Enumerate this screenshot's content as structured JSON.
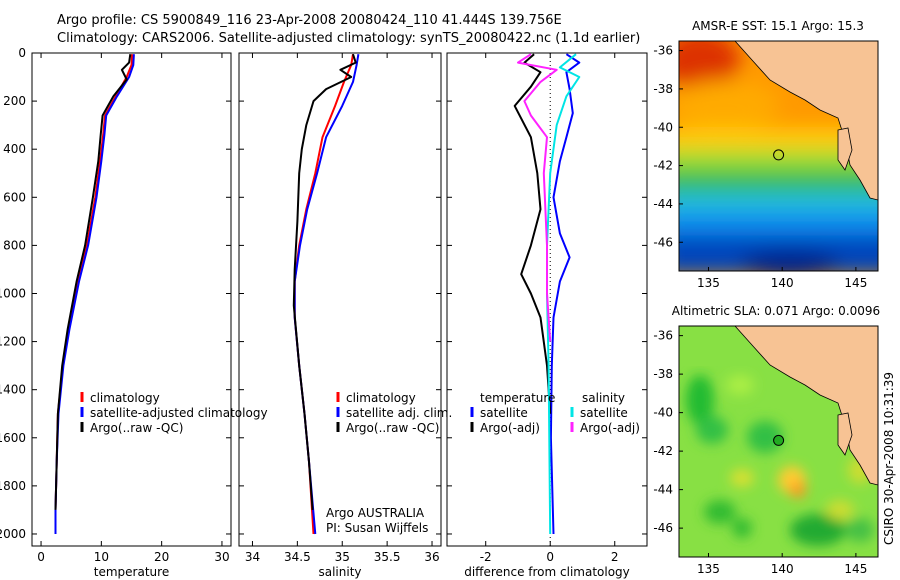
{
  "header": {
    "line1": "Argo profile: CS 5900849_116 23-Apr-2008 20080424_110 41.444S 139.756E",
    "line2": "Climatology: CARS2006. Satellite-adjusted climatology: synTS_20080422.nc (1.1d earlier)"
  },
  "side_label": "CSIRO 30-Apr-2008 10:31:39",
  "colors": {
    "red": "#ff0000",
    "blue": "#0000ff",
    "black": "#000000",
    "cyan": "#00e5e5",
    "magenta": "#ff22ff",
    "land": "#f7c394"
  },
  "chart_data": [
    {
      "id": "temperature",
      "type": "line",
      "xlabel": "temperature",
      "ylabel": "",
      "xlim": [
        -1.5,
        31.5
      ],
      "ylim": [
        2050,
        0
      ],
      "xticks": [
        "0",
        "10",
        "20",
        "30"
      ],
      "yticks": [
        "0",
        "200",
        "400",
        "600",
        "800",
        "1000",
        "1200",
        "1400",
        "1600",
        "1800",
        "2000"
      ],
      "legend": [
        {
          "label": "climatology",
          "color": "red"
        },
        {
          "label": "satellite-adjusted climatology",
          "color": "blue"
        },
        {
          "label": "Argo(..raw -QC)",
          "color": "black"
        }
      ],
      "series": [
        {
          "name": "climatology",
          "color": "red",
          "points": [
            [
              15.1,
              5
            ],
            [
              15.0,
              50
            ],
            [
              14.2,
              100
            ],
            [
              12.4,
              180
            ],
            [
              10.6,
              260
            ],
            [
              10.3,
              340
            ],
            [
              9.8,
              450
            ],
            [
              9.0,
              600
            ],
            [
              7.6,
              800
            ],
            [
              6.2,
              950
            ],
            [
              4.6,
              1150
            ],
            [
              3.6,
              1300
            ],
            [
              2.8,
              1500
            ],
            [
              2.6,
              1700
            ],
            [
              2.4,
              1900
            ],
            [
              2.4,
              2000
            ]
          ]
        },
        {
          "name": "satellite-adjusted climatology",
          "color": "blue",
          "points": [
            [
              15.4,
              5
            ],
            [
              15.3,
              50
            ],
            [
              14.6,
              100
            ],
            [
              12.6,
              180
            ],
            [
              10.8,
              260
            ],
            [
              10.5,
              340
            ],
            [
              10.0,
              450
            ],
            [
              9.2,
              600
            ],
            [
              7.8,
              800
            ],
            [
              6.3,
              950
            ],
            [
              4.7,
              1150
            ],
            [
              3.7,
              1300
            ],
            [
              2.9,
              1500
            ],
            [
              2.6,
              1700
            ],
            [
              2.4,
              1900
            ],
            [
              2.4,
              2000
            ]
          ]
        },
        {
          "name": "Argo(..raw -QC)",
          "color": "black",
          "points": [
            [
              14.8,
              5
            ],
            [
              14.6,
              40
            ],
            [
              13.4,
              70
            ],
            [
              14.2,
              110
            ],
            [
              12.0,
              180
            ],
            [
              10.2,
              260
            ],
            [
              9.9,
              340
            ],
            [
              9.5,
              450
            ],
            [
              8.6,
              600
            ],
            [
              7.3,
              800
            ],
            [
              5.9,
              950
            ],
            [
              4.4,
              1150
            ],
            [
              3.5,
              1300
            ],
            [
              2.8,
              1500
            ],
            [
              2.6,
              1700
            ],
            [
              2.4,
              1900
            ]
          ]
        }
      ]
    },
    {
      "id": "salinity",
      "type": "line",
      "xlabel": "salinity",
      "ylabel": "",
      "xlim": [
        33.85,
        36.1
      ],
      "ylim": [
        2050,
        0
      ],
      "xticks": [
        "34",
        "34.5",
        "35",
        "35.5",
        "36"
      ],
      "legend": [
        {
          "label": "climatology",
          "color": "red"
        },
        {
          "label": "satellite adj. clim.",
          "color": "blue"
        },
        {
          "label": "Argo(..raw -QC)",
          "color": "black"
        }
      ],
      "annotation": [
        "Argo AUSTRALIA",
        "PI: Susan Wijffels"
      ],
      "series": [
        {
          "name": "climatology",
          "color": "red",
          "points": [
            [
              35.12,
              5
            ],
            [
              35.1,
              50
            ],
            [
              35.02,
              120
            ],
            [
              34.92,
              220
            ],
            [
              34.78,
              350
            ],
            [
              34.7,
              500
            ],
            [
              34.6,
              650
            ],
            [
              34.52,
              800
            ],
            [
              34.47,
              950
            ],
            [
              34.47,
              1100
            ],
            [
              34.52,
              1300
            ],
            [
              34.58,
              1500
            ],
            [
              34.63,
              1700
            ],
            [
              34.68,
              2000
            ]
          ]
        },
        {
          "name": "satellite adj. clim.",
          "color": "blue",
          "points": [
            [
              35.18,
              5
            ],
            [
              35.16,
              50
            ],
            [
              35.12,
              120
            ],
            [
              35.0,
              220
            ],
            [
              34.82,
              350
            ],
            [
              34.72,
              500
            ],
            [
              34.61,
              650
            ],
            [
              34.53,
              800
            ],
            [
              34.47,
              950
            ],
            [
              34.47,
              1100
            ],
            [
              34.52,
              1300
            ],
            [
              34.58,
              1500
            ],
            [
              34.63,
              1700
            ],
            [
              34.7,
              2000
            ]
          ]
        },
        {
          "name": "Argo(..raw -QC)",
          "color": "black",
          "points": [
            [
              35.12,
              5
            ],
            [
              35.15,
              40
            ],
            [
              34.98,
              70
            ],
            [
              35.1,
              100
            ],
            [
              34.82,
              150
            ],
            [
              34.68,
              200
            ],
            [
              34.6,
              300
            ],
            [
              34.55,
              400
            ],
            [
              34.52,
              500
            ],
            [
              34.5,
              700
            ],
            [
              34.47,
              900
            ],
            [
              34.46,
              1050
            ],
            [
              34.52,
              1300
            ],
            [
              34.58,
              1500
            ],
            [
              34.63,
              1700
            ],
            [
              34.67,
              1900
            ]
          ]
        }
      ]
    },
    {
      "id": "difference",
      "type": "line",
      "xlabel": "difference from climatology",
      "ylabel": "",
      "xlim": [
        -3.2,
        3.0
      ],
      "ylim": [
        2050,
        0
      ],
      "xticks": [
        "-2",
        "0",
        "2"
      ],
      "legend_left_title": "temperature",
      "legend_right_title": "salinity",
      "legend": [
        {
          "label": "satellite",
          "color": "blue"
        },
        {
          "label": "Argo(-adj)",
          "color": "black"
        },
        {
          "label": "satellite",
          "color": "cyan"
        },
        {
          "label": "Argo(-adj)",
          "color": "magenta"
        }
      ],
      "series": [
        {
          "name": "temperature satellite",
          "color": "blue",
          "points": [
            [
              0.5,
              5
            ],
            [
              0.9,
              40
            ],
            [
              0.5,
              80
            ],
            [
              0.6,
              150
            ],
            [
              0.7,
              250
            ],
            [
              0.5,
              350
            ],
            [
              0.3,
              450
            ],
            [
              0.1,
              600
            ],
            [
              0.3,
              750
            ],
            [
              0.6,
              850
            ],
            [
              0.3,
              950
            ],
            [
              0.1,
              1100
            ],
            [
              0.05,
              1300
            ],
            [
              0.02,
              1600
            ],
            [
              0.1,
              2000
            ]
          ]
        },
        {
          "name": "temperature Argo(-adj)",
          "color": "black",
          "points": [
            [
              -0.5,
              5
            ],
            [
              -0.8,
              40
            ],
            [
              -0.3,
              80
            ],
            [
              -0.6,
              140
            ],
            [
              -1.1,
              220
            ],
            [
              -0.6,
              350
            ],
            [
              -0.4,
              500
            ],
            [
              -0.3,
              650
            ],
            [
              -0.6,
              800
            ],
            [
              -0.9,
              920
            ],
            [
              -0.6,
              1000
            ],
            [
              -0.3,
              1100
            ],
            [
              -0.1,
              1300
            ],
            [
              0.0,
              1500
            ]
          ]
        },
        {
          "name": "salinity satellite",
          "color": "cyan",
          "points": [
            [
              0.8,
              5
            ],
            [
              0.3,
              60
            ],
            [
              0.9,
              100
            ],
            [
              0.5,
              180
            ],
            [
              0.2,
              300
            ],
            [
              0.0,
              500
            ],
            [
              -0.1,
              800
            ],
            [
              -0.1,
              1000
            ],
            [
              -0.05,
              1300
            ],
            [
              0.0,
              2000
            ]
          ]
        },
        {
          "name": "salinity Argo(-adj)",
          "color": "magenta",
          "points": [
            [
              -0.6,
              5
            ],
            [
              -1.0,
              40
            ],
            [
              0.2,
              70
            ],
            [
              -0.3,
              120
            ],
            [
              -0.8,
              200
            ],
            [
              -0.6,
              260
            ],
            [
              -0.1,
              350
            ],
            [
              -0.2,
              500
            ],
            [
              -0.1,
              800
            ],
            [
              -0.1,
              1000
            ],
            [
              0.0,
              1200
            ]
          ]
        }
      ]
    },
    {
      "id": "sst_map",
      "type": "heatmap",
      "title": "AMSR-E SST: 15.1 Argo: 15.3",
      "xlim": [
        133,
        146.5
      ],
      "ylim": [
        -47.5,
        -35.5
      ],
      "xticks": [
        "135",
        "140",
        "145"
      ],
      "yticks": [
        "-36",
        "-38",
        "-40",
        "-42",
        "-44",
        "-46"
      ],
      "float_position": [
        139.756,
        -41.444
      ]
    },
    {
      "id": "sla_map",
      "type": "heatmap",
      "title": "Altimetric SLA: 0.071 Argo: 0.0096",
      "xlim": [
        133,
        146.5
      ],
      "ylim": [
        -47.5,
        -35.5
      ],
      "xticks": [
        "135",
        "140",
        "145"
      ],
      "yticks": [
        "-36",
        "-38",
        "-40",
        "-42",
        "-44",
        "-46"
      ],
      "float_position": [
        139.756,
        -41.444
      ]
    }
  ]
}
